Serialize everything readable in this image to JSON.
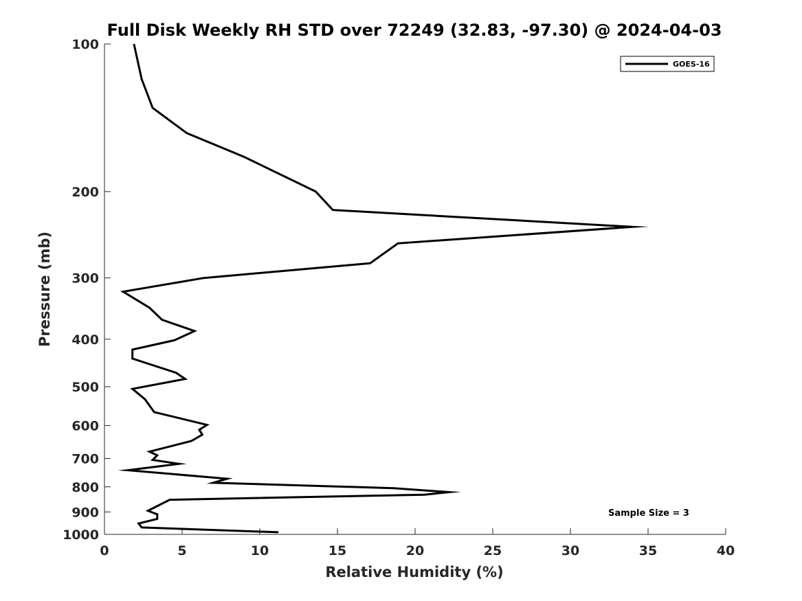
{
  "chart_data": {
    "type": "line",
    "title": "Full Disk Weekly RH STD over 72249 (32.83, -97.30) @ 2024-04-03",
    "xlabel": "Relative Humidity (%)",
    "ylabel": "Pressure (mb)",
    "xlim": [
      0,
      40
    ],
    "ylim": [
      1000,
      100
    ],
    "y_scale": "log",
    "y_reversed": true,
    "xticks": [
      0,
      5,
      10,
      15,
      20,
      25,
      30,
      35,
      40
    ],
    "yticks": [
      100,
      200,
      300,
      400,
      500,
      600,
      700,
      800,
      900,
      1000
    ],
    "grid": false,
    "legend_position": "top-right",
    "series": [
      {
        "name": "GOES-16",
        "color": "#000000",
        "points": [
          [
            1.9,
            100
          ],
          [
            2.4,
            118
          ],
          [
            3.1,
            135
          ],
          [
            5.3,
            152
          ],
          [
            9.0,
            170
          ],
          [
            13.6,
            200
          ],
          [
            14.7,
            218
          ],
          [
            34.0,
            236
          ],
          [
            18.9,
            255
          ],
          [
            17.1,
            280
          ],
          [
            6.4,
            300
          ],
          [
            1.2,
            320
          ],
          [
            2.9,
            345
          ],
          [
            3.7,
            365
          ],
          [
            5.8,
            385
          ],
          [
            4.5,
            402
          ],
          [
            1.8,
            420
          ],
          [
            1.8,
            438
          ],
          [
            4.6,
            468
          ],
          [
            5.2,
            482
          ],
          [
            1.8,
            505
          ],
          [
            2.6,
            530
          ],
          [
            3.2,
            563
          ],
          [
            6.6,
            598
          ],
          [
            6.1,
            612
          ],
          [
            6.3,
            626
          ],
          [
            5.6,
            645
          ],
          [
            2.9,
            678
          ],
          [
            3.4,
            690
          ],
          [
            3.1,
            705
          ],
          [
            4.8,
            718
          ],
          [
            1.5,
            740
          ],
          [
            7.9,
            770
          ],
          [
            7.0,
            785
          ],
          [
            18.6,
            805
          ],
          [
            22.2,
            820
          ],
          [
            20.6,
            830
          ],
          [
            4.2,
            850
          ],
          [
            2.8,
            895
          ],
          [
            3.4,
            910
          ],
          [
            3.4,
            930
          ],
          [
            2.2,
            950
          ],
          [
            2.4,
            968
          ],
          [
            11.2,
            990
          ]
        ]
      }
    ],
    "annotations": [
      {
        "text": "Sample Size = 3",
        "position": "lower-right"
      }
    ]
  }
}
